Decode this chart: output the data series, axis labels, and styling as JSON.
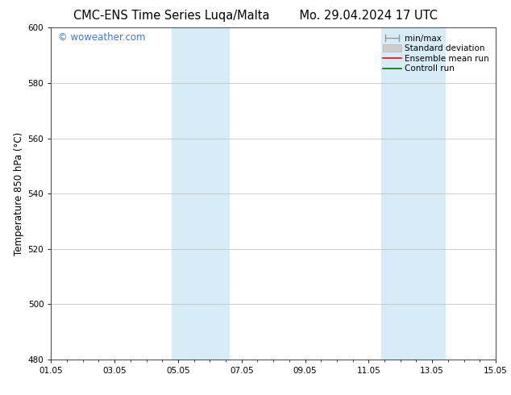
{
  "title_left": "CMC-ENS Time Series Luqa/Malta",
  "title_right": "Mo. 29.04.2024 17 UTC",
  "ylabel": "Temperature 850 hPa (°C)",
  "ylim": [
    480,
    600
  ],
  "yticks": [
    480,
    500,
    520,
    540,
    560,
    580,
    600
  ],
  "xlim": [
    0,
    14
  ],
  "xtick_positions": [
    0,
    2,
    4,
    6,
    8,
    10,
    12,
    14
  ],
  "xtick_labels": [
    "01.05",
    "03.05",
    "05.05",
    "07.05",
    "09.05",
    "11.05",
    "13.05",
    "15.05"
  ],
  "shaded_bands": [
    {
      "x_start": 3.8,
      "x_end": 5.6
    },
    {
      "x_start": 10.4,
      "x_end": 12.4
    }
  ],
  "shade_color": "#d8ecf8",
  "shade_alpha": 1.0,
  "background_color": "#ffffff",
  "plot_bg_color": "#ffffff",
  "grid_color": "#bbbbbb",
  "watermark_text": "© woweather.com",
  "watermark_color": "#4477cc",
  "legend_items": [
    {
      "label": "min/max",
      "color": "#aaaaaa",
      "lw": 1.2
    },
    {
      "label": "Standard deviation",
      "color": "#bbbbbb",
      "lw": 5
    },
    {
      "label": "Ensemble mean run",
      "color": "#ff0000",
      "lw": 1.2
    },
    {
      "label": "Controll run",
      "color": "#007700",
      "lw": 1.2
    }
  ],
  "title_fontsize": 10.5,
  "axis_label_fontsize": 8.5,
  "tick_fontsize": 7.5,
  "legend_fontsize": 7.5,
  "watermark_fontsize": 8.5
}
